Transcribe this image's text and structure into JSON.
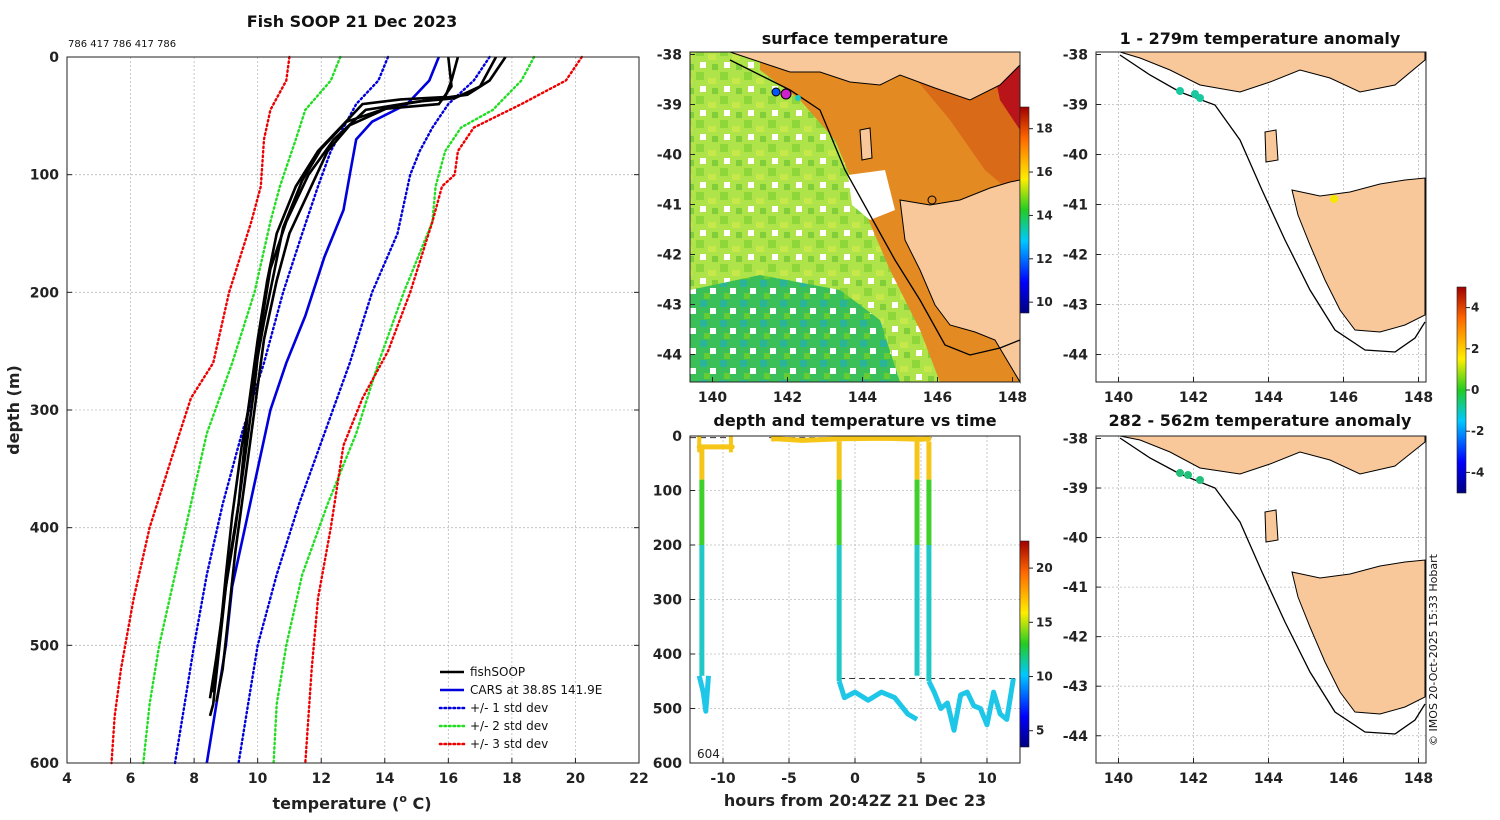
{
  "main_title": "Fish SOOP 21 Dec 2023",
  "profile_ids": "786 417 786 417 786",
  "credit": "© IMOS 20-Oct-2025 15:33 Hobart",
  "chart_data": [
    {
      "id": "profile",
      "type": "line",
      "title": "Fish SOOP 21 Dec 2023",
      "xlabel": "temperature (",
      "xlabel_sup": "o",
      "xlabel_end": " C)",
      "ylabel": "depth (m)",
      "xlim": [
        4,
        22
      ],
      "ylim": [
        0,
        600
      ],
      "xticks": [
        "4",
        "6",
        "8",
        "10",
        "12",
        "14",
        "16",
        "18",
        "20",
        "22"
      ],
      "yticks": [
        "0",
        "100",
        "200",
        "300",
        "400",
        "500",
        "600"
      ],
      "legend": [
        {
          "label": "fishSOOP",
          "color": "#000000",
          "style": "solid"
        },
        {
          "label": "CARS at 38.8S 141.9E",
          "color": "#0000dd",
          "style": "solid"
        },
        {
          "label": "+/- 1 std dev",
          "color": "#0000dd",
          "style": "dotted"
        },
        {
          "label": "+/- 2 std dev",
          "color": "#22dd22",
          "style": "dotted"
        },
        {
          "label": "+/- 3 std dev",
          "color": "#ee0000",
          "style": "dotted"
        }
      ],
      "series": [
        {
          "name": "CARS mean",
          "color": "#0000dd",
          "style": "solid",
          "points": [
            [
              15.7,
              0
            ],
            [
              15.4,
              20
            ],
            [
              14.7,
              40
            ],
            [
              13.6,
              55
            ],
            [
              13.1,
              70
            ],
            [
              12.9,
              100
            ],
            [
              12.7,
              130
            ],
            [
              12.1,
              170
            ],
            [
              11.5,
              220
            ],
            [
              10.9,
              260
            ],
            [
              10.4,
              300
            ],
            [
              10.0,
              350
            ],
            [
              9.6,
              400
            ],
            [
              9.2,
              450
            ],
            [
              9.0,
              500
            ],
            [
              8.7,
              550
            ],
            [
              8.4,
              600
            ]
          ]
        },
        {
          "name": "-1 std",
          "color": "#0000dd",
          "style": "dotted",
          "points": [
            [
              14.1,
              0
            ],
            [
              13.8,
              20
            ],
            [
              13.1,
              40
            ],
            [
              12.7,
              60
            ],
            [
              12.3,
              80
            ],
            [
              11.9,
              110
            ],
            [
              11.4,
              150
            ],
            [
              10.8,
              200
            ],
            [
              10.2,
              260
            ],
            [
              9.5,
              320
            ],
            [
              8.9,
              380
            ],
            [
              8.4,
              440
            ],
            [
              8.0,
              500
            ],
            [
              7.7,
              550
            ],
            [
              7.4,
              600
            ]
          ]
        },
        {
          "name": "+1 std",
          "color": "#0000dd",
          "style": "dotted",
          "points": [
            [
              17.3,
              0
            ],
            [
              16.8,
              20
            ],
            [
              16.0,
              40
            ],
            [
              15.5,
              60
            ],
            [
              15.1,
              80
            ],
            [
              14.8,
              100
            ],
            [
              14.4,
              150
            ],
            [
              13.6,
              200
            ],
            [
              12.9,
              260
            ],
            [
              12.1,
              320
            ],
            [
              11.3,
              380
            ],
            [
              10.6,
              440
            ],
            [
              10.0,
              500
            ],
            [
              9.7,
              550
            ],
            [
              9.4,
              600
            ]
          ]
        },
        {
          "name": "-2 std",
          "color": "#22dd22",
          "style": "dotted",
          "points": [
            [
              12.6,
              0
            ],
            [
              12.3,
              20
            ],
            [
              11.5,
              45
            ],
            [
              11.2,
              70
            ],
            [
              10.7,
              110
            ],
            [
              10.4,
              140
            ],
            [
              9.9,
              200
            ],
            [
              9.2,
              260
            ],
            [
              8.4,
              320
            ],
            [
              7.9,
              380
            ],
            [
              7.4,
              440
            ],
            [
              6.9,
              500
            ],
            [
              6.6,
              550
            ],
            [
              6.4,
              600
            ]
          ]
        },
        {
          "name": "+2 std",
          "color": "#22dd22",
          "style": "dotted",
          "points": [
            [
              18.7,
              0
            ],
            [
              18.3,
              20
            ],
            [
              17.4,
              45
            ],
            [
              16.4,
              60
            ],
            [
              15.9,
              80
            ],
            [
              15.6,
              110
            ],
            [
              15.5,
              140
            ],
            [
              14.6,
              200
            ],
            [
              13.8,
              260
            ],
            [
              13.1,
              320
            ],
            [
              12.2,
              380
            ],
            [
              11.4,
              440
            ],
            [
              10.9,
              500
            ],
            [
              10.6,
              550
            ],
            [
              10.5,
              600
            ]
          ]
        },
        {
          "name": "-3 std",
          "color": "#ee0000",
          "style": "dotted",
          "points": [
            [
              11.0,
              0
            ],
            [
              10.9,
              20
            ],
            [
              10.4,
              45
            ],
            [
              10.2,
              70
            ],
            [
              10.1,
              110
            ],
            [
              9.8,
              140
            ],
            [
              9.1,
              200
            ],
            [
              8.6,
              260
            ],
            [
              7.9,
              290
            ],
            [
              7.3,
              340
            ],
            [
              6.6,
              400
            ],
            [
              6.1,
              460
            ],
            [
              5.7,
              520
            ],
            [
              5.5,
              560
            ],
            [
              5.4,
              600
            ]
          ]
        },
        {
          "name": "+3 std",
          "color": "#ee0000",
          "style": "dotted",
          "points": [
            [
              20.2,
              0
            ],
            [
              19.7,
              20
            ],
            [
              18.3,
              40
            ],
            [
              16.8,
              60
            ],
            [
              16.3,
              80
            ],
            [
              16.2,
              100
            ],
            [
              15.8,
              110
            ],
            [
              15.5,
              140
            ],
            [
              14.8,
              200
            ],
            [
              14.1,
              250
            ],
            [
              13.3,
              290
            ],
            [
              12.7,
              330
            ],
            [
              12.3,
              400
            ],
            [
              11.9,
              460
            ],
            [
              11.7,
              520
            ],
            [
              11.5,
              600
            ]
          ]
        },
        {
          "name": "fishSOOP 1",
          "color": "#000000",
          "style": "solid",
          "points": [
            [
              16.3,
              0
            ],
            [
              16.1,
              20
            ],
            [
              15.9,
              34
            ],
            [
              14.5,
              36
            ],
            [
              13.3,
              40
            ],
            [
              12.6,
              60
            ],
            [
              11.9,
              80
            ],
            [
              11.2,
              110
            ],
            [
              10.6,
              150
            ],
            [
              10.3,
              190
            ],
            [
              10.0,
              240
            ],
            [
              9.7,
              300
            ],
            [
              9.4,
              380
            ],
            [
              9.1,
              430
            ],
            [
              8.9,
              470
            ],
            [
              8.7,
              510
            ],
            [
              8.5,
              545
            ]
          ]
        },
        {
          "name": "fishSOOP 2",
          "color": "#000000",
          "style": "solid",
          "points": [
            [
              17.5,
              0
            ],
            [
              17.0,
              25
            ],
            [
              16.2,
              35
            ],
            [
              15.0,
              38
            ],
            [
              13.4,
              45
            ],
            [
              12.4,
              70
            ],
            [
              11.6,
              100
            ],
            [
              10.9,
              140
            ],
            [
              10.4,
              180
            ],
            [
              10.1,
              230
            ],
            [
              9.9,
              280
            ],
            [
              9.6,
              340
            ],
            [
              9.3,
              400
            ],
            [
              9.0,
              450
            ],
            [
              8.8,
              500
            ],
            [
              8.6,
              550
            ],
            [
              8.5,
              560
            ]
          ]
        },
        {
          "name": "fishSOOP 3",
          "color": "#000000",
          "style": "solid",
          "points": [
            [
              16.0,
              0
            ],
            [
              16.1,
              25
            ],
            [
              15.7,
              40
            ],
            [
              14.0,
              44
            ],
            [
              12.8,
              55
            ],
            [
              12.0,
              78
            ],
            [
              11.4,
              105
            ],
            [
              10.8,
              145
            ],
            [
              10.5,
              185
            ],
            [
              10.2,
              225
            ],
            [
              9.9,
              270
            ],
            [
              9.5,
              330
            ],
            [
              9.2,
              390
            ],
            [
              9.0,
              440
            ],
            [
              8.8,
              495
            ],
            [
              8.6,
              540
            ]
          ]
        },
        {
          "name": "fishSOOP 4",
          "color": "#000000",
          "style": "solid",
          "points": [
            [
              17.8,
              0
            ],
            [
              17.3,
              20
            ],
            [
              16.6,
              32
            ],
            [
              15.5,
              36
            ],
            [
              14.2,
              42
            ],
            [
              12.9,
              58
            ],
            [
              12.2,
              80
            ],
            [
              11.6,
              115
            ],
            [
              11.0,
              150
            ],
            [
              10.6,
              190
            ],
            [
              10.2,
              240
            ],
            [
              9.9,
              300
            ],
            [
              9.6,
              360
            ],
            [
              9.3,
              420
            ],
            [
              9.1,
              470
            ],
            [
              8.9,
              520
            ],
            [
              8.7,
              548
            ]
          ]
        }
      ]
    },
    {
      "id": "depth_time",
      "type": "scatter",
      "title": "depth and temperature vs time",
      "xlabel": "hours from 20:42Z 21 Dec 23",
      "xlim": [
        -12.5,
        12.5
      ],
      "ylim": [
        0,
        600
      ],
      "xticks": [
        "-10",
        "-5",
        "0",
        "5",
        "10"
      ],
      "yticks": [
        "0",
        "100",
        "200",
        "300",
        "400",
        "500",
        "600"
      ],
      "colorbar_ticks": [
        "5",
        "10",
        "15",
        "20"
      ],
      "colorbar_range": [
        3.5,
        22.5
      ],
      "annotation": "604"
    },
    {
      "id": "sst",
      "type": "heatmap",
      "title": "surface temperature",
      "xticks": [
        "140",
        "142",
        "144",
        "146",
        "148"
      ],
      "yticks": [
        "-38",
        "-39",
        "-40",
        "-41",
        "-42",
        "-43",
        "-44"
      ],
      "colorbar_ticks": [
        "10",
        "12",
        "14",
        "16",
        "18"
      ],
      "colorbar_range": [
        9.5,
        19
      ]
    },
    {
      "id": "anom_upper",
      "type": "scatter",
      "title": "1 - 279m temperature anomaly",
      "xticks": [
        "140",
        "142",
        "144",
        "146",
        "148"
      ],
      "yticks": [
        "-38",
        "-39",
        "-40",
        "-41",
        "-42",
        "-43",
        "-44"
      ]
    },
    {
      "id": "anom_lower",
      "type": "scatter",
      "title": "282 - 562m temperature anomaly",
      "xticks": [
        "140",
        "142",
        "144",
        "146",
        "148"
      ],
      "yticks": [
        "-38",
        "-39",
        "-40",
        "-41",
        "-42",
        "-43",
        "-44"
      ],
      "colorbar_ticks": [
        "4",
        "2",
        "0",
        "-2",
        "-4"
      ],
      "colorbar_range": [
        -5,
        5
      ]
    }
  ]
}
